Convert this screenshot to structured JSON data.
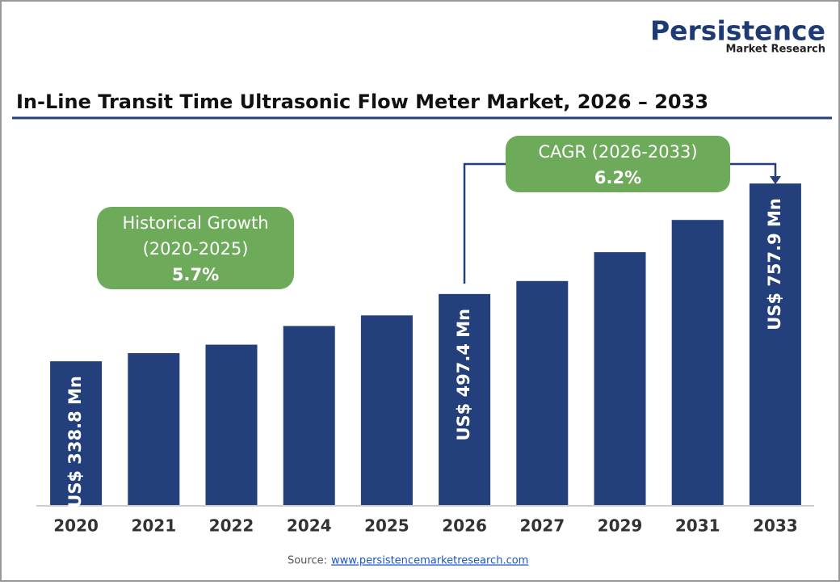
{
  "chart_data": {
    "type": "bar",
    "title": "In-Line Transit Time Ultrasonic Flow Meter Market, 2026 – 2033",
    "categories": [
      "2020",
      "2021",
      "2022",
      "2024",
      "2025",
      "2026",
      "2027",
      "2029",
      "2031",
      "2033"
    ],
    "values": [
      338.8,
      358,
      378,
      422,
      447,
      497.4,
      528,
      596,
      672,
      757.9
    ],
    "value_labels": [
      "US$ 338.8 Mn",
      null,
      null,
      null,
      null,
      "US$ 497.4 Mn",
      null,
      null,
      null,
      "US$ 757.9 Mn"
    ],
    "color": "#233f7c",
    "ylim": [
      0,
      800
    ],
    "annotations": {
      "historical": [
        "Historical Growth",
        "(2020-2025)",
        "5.7%"
      ],
      "cagr": [
        "CAGR (2026-2033)",
        "6.2%"
      ]
    },
    "logo": [
      "Persistence",
      "Market Research"
    ],
    "source": {
      "label": "Source:",
      "link": "www.persistencemarketresearch.com"
    }
  }
}
